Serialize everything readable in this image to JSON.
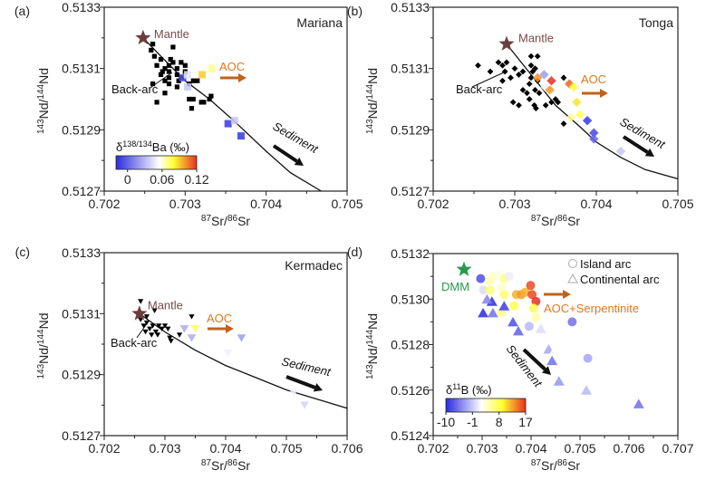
{
  "chart_data": [
    {
      "panel_label": "(a)",
      "region": "Mariana",
      "type": "scatter",
      "xlabel": {
        "sup1": "87",
        "base1": "Sr/",
        "sup2": "86",
        "base2": "Sr"
      },
      "ylabel": {
        "sup1": "143",
        "base1": "Nd/",
        "sup2": "144",
        "base2": "Nd"
      },
      "xlim": [
        0.702,
        0.705
      ],
      "ylim": [
        0.5127,
        0.5133
      ],
      "xticks": [
        "0.702",
        "0.703",
        "0.704",
        "0.705"
      ],
      "yticks": [
        "0.5127",
        "0.5129",
        "0.5131",
        "0.5133"
      ],
      "marker": "square",
      "colorbar": {
        "title_base": "δ",
        "title_sup": "138/134",
        "title_rest": "Ba (‰)",
        "range": [
          -0.02,
          0.12
        ],
        "ticks": [
          "0",
          "0.06",
          "0.12"
        ]
      },
      "annotations": {
        "mantle": "Mantle",
        "back_arc": "Back-arc",
        "aoc": "AOC",
        "sediment": "Sediment"
      },
      "mantle": [
        0.70248,
        0.5132
      ],
      "mixing_curve": [
        [
          0.70248,
          0.5132
        ],
        [
          0.7027,
          0.51314
        ],
        [
          0.703,
          0.51306
        ],
        [
          0.7033,
          0.513
        ],
        [
          0.7036,
          0.51293
        ],
        [
          0.704,
          0.51283
        ],
        [
          0.7043,
          0.51276
        ],
        [
          0.70468,
          0.5127
        ]
      ],
      "background_points": [
        [
          0.7027,
          0.51313
        ],
        [
          0.7028,
          0.51311
        ],
        [
          0.70275,
          0.5131
        ],
        [
          0.70285,
          0.51312
        ],
        [
          0.7029,
          0.5131
        ],
        [
          0.7028,
          0.51309
        ],
        [
          0.70265,
          0.51311
        ],
        [
          0.7027,
          0.51308
        ],
        [
          0.7028,
          0.51307
        ],
        [
          0.7029,
          0.51308
        ],
        [
          0.703,
          0.51309
        ],
        [
          0.70285,
          0.51317
        ],
        [
          0.70295,
          0.51312
        ],
        [
          0.703,
          0.51311
        ],
        [
          0.70262,
          0.51314
        ],
        [
          0.70258,
          0.51316
        ],
        [
          0.7026,
          0.51318
        ],
        [
          0.70275,
          0.51306
        ],
        [
          0.7028,
          0.51305
        ],
        [
          0.7026,
          0.51305
        ],
        [
          0.70275,
          0.51302
        ],
        [
          0.70265,
          0.51299
        ],
        [
          0.70305,
          0.51305
        ],
        [
          0.7031,
          0.51306
        ],
        [
          0.70315,
          0.51306
        ],
        [
          0.70305,
          0.513
        ],
        [
          0.7031,
          0.513
        ],
        [
          0.7032,
          0.51299
        ],
        [
          0.70308,
          0.51297
        ],
        [
          0.70323,
          0.51299
        ],
        [
          0.7033,
          0.513
        ],
        [
          0.70332,
          0.51301
        ],
        [
          0.7029,
          0.51304
        ],
        [
          0.70295,
          0.51307
        ],
        [
          0.70272,
          0.51309
        ],
        [
          0.70282,
          0.51313
        ],
        [
          0.70292,
          0.51306
        ]
      ],
      "colored_points": [
        {
          "x": 0.70297,
          "y": 0.51307,
          "v": -0.005
        },
        {
          "x": 0.70303,
          "y": 0.51308,
          "v": 0.045
        },
        {
          "x": 0.70303,
          "y": 0.51304,
          "v": 0.035
        },
        {
          "x": 0.70321,
          "y": 0.51308,
          "v": 0.09
        },
        {
          "x": 0.70333,
          "y": 0.5131,
          "v": 0.07
        },
        {
          "x": 0.70353,
          "y": 0.51292,
          "v": -0.015
        },
        {
          "x": 0.70361,
          "y": 0.51293,
          "v": 0.035
        },
        {
          "x": 0.70369,
          "y": 0.51288,
          "v": -0.015
        }
      ]
    },
    {
      "panel_label": "(b)",
      "region": "Tonga",
      "type": "scatter",
      "xlabel": {
        "sup1": "87",
        "base1": "Sr/",
        "sup2": "86",
        "base2": "Sr"
      },
      "ylabel": {
        "sup1": "143",
        "base1": "Nd/",
        "sup2": "144",
        "base2": "Nd"
      },
      "xlim": [
        0.702,
        0.705
      ],
      "ylim": [
        0.5127,
        0.5133
      ],
      "xticks": [
        "0.702",
        "0.703",
        "0.704",
        "0.705"
      ],
      "yticks": [
        "0.5127",
        "0.5129",
        "0.5131",
        "0.5133"
      ],
      "marker": "diamond",
      "annotations": {
        "mantle": "Mantle",
        "back_arc": "Back-arc",
        "aoc": "AOC",
        "sediment": "Sediment"
      },
      "mantle": [
        0.7029,
        0.51318
      ],
      "mixing_curve": [
        [
          0.7029,
          0.51318
        ],
        [
          0.7032,
          0.51308
        ],
        [
          0.7035,
          0.51298
        ],
        [
          0.7038,
          0.51291
        ],
        [
          0.704,
          0.51286
        ],
        [
          0.7043,
          0.51281
        ],
        [
          0.7046,
          0.51277
        ],
        [
          0.705,
          0.51274
        ]
      ],
      "background_points": [
        [
          0.70255,
          0.51311
        ],
        [
          0.7028,
          0.51312
        ],
        [
          0.70285,
          0.51311
        ],
        [
          0.7029,
          0.51312
        ],
        [
          0.70288,
          0.51309
        ],
        [
          0.703,
          0.5131
        ],
        [
          0.70295,
          0.51307
        ],
        [
          0.7031,
          0.51309
        ],
        [
          0.70305,
          0.51308
        ],
        [
          0.7031,
          0.51303
        ],
        [
          0.70315,
          0.51302
        ],
        [
          0.70318,
          0.513
        ],
        [
          0.70298,
          0.51299
        ],
        [
          0.70305,
          0.51298
        ],
        [
          0.7032,
          0.51314
        ],
        [
          0.70328,
          0.51314
        ],
        [
          0.7032,
          0.51311
        ],
        [
          0.70322,
          0.51309
        ],
        [
          0.70325,
          0.5131
        ],
        [
          0.7032,
          0.51307
        ],
        [
          0.70328,
          0.51306
        ],
        [
          0.70318,
          0.51305
        ],
        [
          0.70325,
          0.51303
        ],
        [
          0.7033,
          0.51302
        ],
        [
          0.70324,
          0.51298
        ],
        [
          0.70326,
          0.51297
        ],
        [
          0.70338,
          0.51298
        ],
        [
          0.70345,
          0.51299
        ],
        [
          0.7035,
          0.513
        ],
        [
          0.70353,
          0.51299
        ],
        [
          0.7036,
          0.51307
        ],
        [
          0.7036,
          0.51292
        ],
        [
          0.70285,
          0.51306
        ],
        [
          0.7027,
          0.51309
        ]
      ],
      "colored_points": [
        {
          "x": 0.70336,
          "y": 0.51308,
          "v": 0.02
        },
        {
          "x": 0.70328,
          "y": 0.51307,
          "v": 0.1
        },
        {
          "x": 0.70345,
          "y": 0.51306,
          "v": 0.12
        },
        {
          "x": 0.70337,
          "y": 0.51304,
          "v": 0.05
        },
        {
          "x": 0.70343,
          "y": 0.51303,
          "v": 0.1
        },
        {
          "x": 0.70367,
          "y": 0.51305,
          "v": 0.11
        },
        {
          "x": 0.70372,
          "y": 0.51304,
          "v": 0.08
        },
        {
          "x": 0.70376,
          "y": 0.51299,
          "v": 0.085
        },
        {
          "x": 0.70369,
          "y": 0.51294,
          "v": 0.068
        },
        {
          "x": 0.7038,
          "y": 0.51295,
          "v": 0.075
        },
        {
          "x": 0.70389,
          "y": 0.51293,
          "v": -0.015
        },
        {
          "x": 0.70397,
          "y": 0.51289,
          "v": -0.01
        },
        {
          "x": 0.70397,
          "y": 0.51287,
          "v": 0.0
        },
        {
          "x": 0.7043,
          "y": 0.51283,
          "v": 0.035
        }
      ]
    },
    {
      "panel_label": "(c)",
      "region": "Kermadec",
      "type": "scatter",
      "xlabel": {
        "sup1": "87",
        "base1": "Sr/",
        "sup2": "86",
        "base2": "Sr"
      },
      "ylabel": {
        "sup1": "143",
        "base1": "Nd/",
        "sup2": "144",
        "base2": "Nd"
      },
      "xlim": [
        0.702,
        0.706
      ],
      "ylim": [
        0.5127,
        0.5133
      ],
      "xticks": [
        "0.702",
        "0.703",
        "0.704",
        "0.705",
        "0.706"
      ],
      "yticks": [
        "0.5127",
        "0.5129",
        "0.5131",
        "0.5133"
      ],
      "marker": "triangle-down",
      "annotations": {
        "mantle": "Mantle",
        "back_arc": "Back-arc",
        "aoc": "AOC",
        "sediment": "Sediment"
      },
      "mantle": [
        0.70258,
        0.5131
      ],
      "mixing_curve": [
        [
          0.70258,
          0.5131
        ],
        [
          0.703,
          0.51304
        ],
        [
          0.7035,
          0.51298
        ],
        [
          0.704,
          0.51293
        ],
        [
          0.7045,
          0.51289
        ],
        [
          0.705,
          0.51285
        ],
        [
          0.7055,
          0.51282
        ],
        [
          0.706,
          0.51279
        ]
      ],
      "background_points": [
        [
          0.7026,
          0.51314
        ],
        [
          0.70283,
          0.51311
        ],
        [
          0.7026,
          0.51308
        ],
        [
          0.70265,
          0.51306
        ],
        [
          0.7027,
          0.51307
        ],
        [
          0.70275,
          0.51305
        ],
        [
          0.7028,
          0.51306
        ],
        [
          0.70268,
          0.51304
        ],
        [
          0.70278,
          0.51303
        ],
        [
          0.70285,
          0.51304
        ],
        [
          0.7029,
          0.51306
        ],
        [
          0.70295,
          0.51305
        ],
        [
          0.703,
          0.51306
        ],
        [
          0.70305,
          0.51305
        ],
        [
          0.70288,
          0.51303
        ],
        [
          0.70308,
          0.51302
        ],
        [
          0.7031,
          0.51301
        ],
        [
          0.70324,
          0.51303
        ],
        [
          0.70344,
          0.51309
        ],
        [
          0.7027,
          0.51309
        ]
      ],
      "colored_points": [
        {
          "x": 0.70332,
          "y": 0.51305,
          "v": 0.025
        },
        {
          "x": 0.70344,
          "y": 0.51302,
          "v": 0.025
        },
        {
          "x": 0.7035,
          "y": 0.51305,
          "v": 0.075
        },
        {
          "x": 0.70426,
          "y": 0.51302,
          "v": 0.02
        },
        {
          "x": 0.70404,
          "y": 0.51297,
          "v": 0.05
        },
        {
          "x": 0.70512,
          "y": 0.51284,
          "v": 0.05
        },
        {
          "x": 0.7053,
          "y": 0.5128,
          "v": 0.04
        }
      ]
    },
    {
      "panel_label": "(d)",
      "type": "scatter",
      "xlabel": {
        "sup1": "87",
        "base1": "Sr/",
        "sup2": "86",
        "base2": "Sr"
      },
      "ylabel": {
        "sup1": "143",
        "base1": "Nd/",
        "sup2": "144",
        "base2": "Nd"
      },
      "xlim": [
        0.702,
        0.707
      ],
      "ylim": [
        0.5124,
        0.5132
      ],
      "xticks": [
        "0.702",
        "0.703",
        "0.704",
        "0.705",
        "0.706",
        "0.707"
      ],
      "yticks": [
        "0.5124",
        "0.5126",
        "0.5128",
        "0.5130",
        "0.5132"
      ],
      "legend": {
        "placement": "top-right",
        "items": [
          {
            "marker": "circle",
            "label": "Island arc"
          },
          {
            "marker": "triangle-up",
            "label": "Continental arc"
          }
        ]
      },
      "colorbar": {
        "title_base": "δ",
        "title_sup": "11",
        "title_rest": "B (‰)",
        "range": [
          -10,
          17
        ],
        "ticks": [
          "-10",
          "-1",
          "8",
          "17"
        ]
      },
      "annotations": {
        "dmm": "DMM",
        "aoc": "AOC+Serpentinite",
        "sediment": "Sediment"
      },
      "dmm": [
        0.70263,
        0.51313
      ],
      "colored_points": [
        {
          "m": "circle",
          "x": 0.70297,
          "y": 0.51309,
          "v": -8
        },
        {
          "m": "circle",
          "x": 0.70303,
          "y": 0.51304,
          "v": 0
        },
        {
          "m": "circle",
          "x": 0.70315,
          "y": 0.51308,
          "v": 5
        },
        {
          "m": "circle",
          "x": 0.70325,
          "y": 0.5131,
          "v": 4
        },
        {
          "m": "circle",
          "x": 0.70335,
          "y": 0.51311,
          "v": 3
        },
        {
          "m": "circle",
          "x": 0.70345,
          "y": 0.51309,
          "v": 6
        },
        {
          "m": "circle",
          "x": 0.70355,
          "y": 0.5131,
          "v": 1
        },
        {
          "m": "circle",
          "x": 0.70316,
          "y": 0.51304,
          "v": 7
        },
        {
          "m": "circle",
          "x": 0.7033,
          "y": 0.51302,
          "v": 2
        },
        {
          "m": "circle",
          "x": 0.70345,
          "y": 0.51302,
          "v": 7
        },
        {
          "m": "circle",
          "x": 0.7034,
          "y": 0.51305,
          "v": 4
        },
        {
          "m": "circle",
          "x": 0.7034,
          "y": 0.51294,
          "v": 6
        },
        {
          "m": "circle",
          "x": 0.7037,
          "y": 0.51302,
          "v": 12
        },
        {
          "m": "circle",
          "x": 0.7038,
          "y": 0.51302,
          "v": 13
        },
        {
          "m": "circle",
          "x": 0.70388,
          "y": 0.51303,
          "v": 12
        },
        {
          "m": "circle",
          "x": 0.70399,
          "y": 0.51306,
          "v": 16
        },
        {
          "m": "circle",
          "x": 0.70402,
          "y": 0.51302,
          "v": 16
        },
        {
          "m": "circle",
          "x": 0.7041,
          "y": 0.51299,
          "v": 17
        },
        {
          "m": "circle",
          "x": 0.70405,
          "y": 0.51296,
          "v": 8
        },
        {
          "m": "circle",
          "x": 0.70365,
          "y": 0.51297,
          "v": 8
        },
        {
          "m": "circle",
          "x": 0.7041,
          "y": 0.51292,
          "v": 5
        },
        {
          "m": "circle",
          "x": 0.70396,
          "y": 0.51288,
          "v": -2
        },
        {
          "m": "circle",
          "x": 0.70484,
          "y": 0.5129,
          "v": -6
        },
        {
          "m": "circle",
          "x": 0.70516,
          "y": 0.51274,
          "v": -3
        },
        {
          "m": "triangle-up",
          "x": 0.70302,
          "y": 0.51294,
          "v": -10
        },
        {
          "m": "triangle-up",
          "x": 0.70322,
          "y": 0.51294,
          "v": -6
        },
        {
          "m": "triangle-up",
          "x": 0.7032,
          "y": 0.51299,
          "v": -10
        },
        {
          "m": "triangle-up",
          "x": 0.7031,
          "y": 0.513,
          "v": -5
        },
        {
          "m": "triangle-up",
          "x": 0.70345,
          "y": 0.51297,
          "v": -9
        },
        {
          "m": "triangle-up",
          "x": 0.70363,
          "y": 0.5129,
          "v": -8
        },
        {
          "m": "triangle-up",
          "x": 0.70374,
          "y": 0.51286,
          "v": -7
        },
        {
          "m": "triangle-up",
          "x": 0.7042,
          "y": 0.51287,
          "v": 0
        },
        {
          "m": "triangle-up",
          "x": 0.70436,
          "y": 0.51278,
          "v": -3
        },
        {
          "m": "triangle-up",
          "x": 0.70449,
          "y": 0.51278,
          "v": 2
        },
        {
          "m": "triangle-up",
          "x": 0.70443,
          "y": 0.51273,
          "v": -6
        },
        {
          "m": "triangle-up",
          "x": 0.70457,
          "y": 0.51264,
          "v": -4
        },
        {
          "m": "triangle-up",
          "x": 0.70513,
          "y": 0.5126,
          "v": -2
        },
        {
          "m": "triangle-up",
          "x": 0.7062,
          "y": 0.51254,
          "v": -6
        }
      ]
    }
  ],
  "colors": {
    "mantle_star": "#6b3e3e",
    "mantle_text": "#7a4a4a",
    "aoc_text": "#e07820",
    "aoc_arrow": "#c0621e",
    "dmm": "#2a9a4a",
    "background_points": "#000000"
  }
}
